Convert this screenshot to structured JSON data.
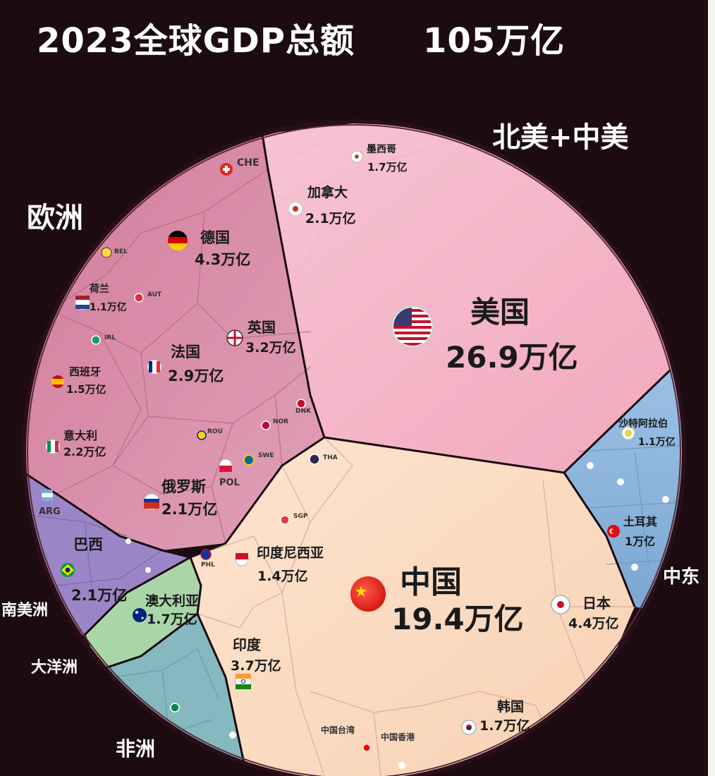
{
  "header": {
    "title": "2023全球GDP总额",
    "total": "105万亿"
  },
  "regions": [
    {
      "id": "north_america",
      "label": "北美+中美"
    },
    {
      "id": "europe",
      "label": "欧洲"
    },
    {
      "id": "middle_east",
      "label": "中东"
    },
    {
      "id": "south_america",
      "label": "南美洲"
    },
    {
      "id": "oceania",
      "label": "大洋洲"
    },
    {
      "id": "africa",
      "label": "非洲"
    }
  ],
  "chart_data": {
    "type": "voronoi-treemap",
    "title": "2023全球GDP总额",
    "total_label": "105万亿",
    "unit": "万亿",
    "cells": [
      {
        "name": "美国",
        "value_label": "26.9万亿",
        "value": 26.9,
        "region": "north_america"
      },
      {
        "name": "中国",
        "value_label": "19.4万亿",
        "value": 19.4,
        "region": "asia"
      },
      {
        "name": "日本",
        "value_label": "4.4万亿",
        "value": 4.4,
        "region": "asia"
      },
      {
        "name": "德国",
        "value_label": "4.3万亿",
        "value": 4.3,
        "region": "europe"
      },
      {
        "name": "印度",
        "value_label": "3.7万亿",
        "value": 3.7,
        "region": "asia"
      },
      {
        "name": "英国",
        "value_label": "3.2万亿",
        "value": 3.2,
        "region": "europe"
      },
      {
        "name": "法国",
        "value_label": "2.9万亿",
        "value": 2.9,
        "region": "europe"
      },
      {
        "name": "意大利",
        "value_label": "2.2万亿",
        "value": 2.2,
        "region": "europe"
      },
      {
        "name": "加拿大",
        "value_label": "2.1万亿",
        "value": 2.1,
        "region": "north_america"
      },
      {
        "name": "俄罗斯",
        "value_label": "2.1万亿",
        "value": 2.1,
        "region": "europe"
      },
      {
        "name": "巴西",
        "value_label": "2.1万亿",
        "value": 2.1,
        "region": "south_america"
      },
      {
        "name": "墨西哥",
        "value_label": "1.7万亿",
        "value": 1.7,
        "region": "north_america"
      },
      {
        "name": "澳大利亚",
        "value_label": "1.7万亿",
        "value": 1.7,
        "region": "oceania"
      },
      {
        "name": "韩国",
        "value_label": "1.7万亿",
        "value": 1.7,
        "region": "asia"
      },
      {
        "name": "西班牙",
        "value_label": "1.5万亿",
        "value": 1.5,
        "region": "europe"
      },
      {
        "name": "印度尼西亚",
        "value_label": "1.4万亿",
        "value": 1.4,
        "region": "asia"
      },
      {
        "name": "荷兰",
        "value_label": "1.1万亿",
        "value": 1.1,
        "region": "europe"
      },
      {
        "name": "沙特阿拉伯",
        "value_label": "1.1万亿",
        "value": 1.1,
        "region": "middle_east"
      },
      {
        "name": "土耳其",
        "value_label": "1万亿",
        "value": 1.0,
        "region": "middle_east"
      }
    ],
    "small_cells": [
      "CHE",
      "BEL",
      "AUT",
      "IRL",
      "POL",
      "SWE",
      "NOR",
      "DNK",
      "ROU",
      "ARG",
      "THA",
      "SGP",
      "PHL",
      "中国台湾",
      "中国香港"
    ]
  },
  "colors": {
    "north_america": "#f4b5c6",
    "europe": "#d98aa6",
    "asia": "#fbdcc3",
    "middle_east": "#8cb4db",
    "south_america": "#9a86c6",
    "oceania": "#a9d6a8",
    "africa": "#86b8c0"
  }
}
